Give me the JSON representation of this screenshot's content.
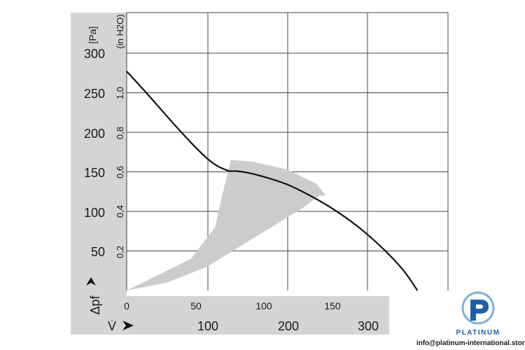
{
  "chart_data": {
    "type": "line",
    "x_axes": {
      "primary": {
        "ticks": [
          "0",
          "50",
          "100",
          "150"
        ],
        "range": [
          0,
          200
        ]
      },
      "secondary": {
        "symbol": "V̇",
        "ticks": [
          "100",
          "200",
          "300"
        ],
        "unit": ""
      }
    },
    "y_axes": {
      "primary": {
        "symbol": "Δpf",
        "unit": "[Pa]",
        "ticks": [
          "50",
          "100",
          "150",
          "200",
          "250",
          "300"
        ],
        "range": [
          0,
          300
        ]
      },
      "secondary": {
        "unit": "(in H2O)",
        "ticks": [
          "0,2",
          "0,4",
          "0,6",
          "0,8",
          "1,0"
        ]
      }
    },
    "grid": true,
    "series": [
      {
        "x": [
          0,
          10,
          20,
          30,
          40,
          50,
          56,
          60,
          64,
          68,
          75,
          85,
          100,
          115,
          130,
          145,
          160,
          172,
          181
        ],
        "y": [
          277,
          255,
          232,
          209,
          187,
          167,
          158,
          154,
          151,
          151,
          149,
          144,
          134,
          119,
          101,
          79,
          52,
          26,
          0
        ]
      }
    ],
    "operating_region": {
      "x": [
        0,
        25,
        50,
        70,
        90,
        110,
        120,
        124,
        118,
        100,
        78,
        65,
        60,
        55,
        40,
        0
      ],
      "y": [
        0,
        10,
        30,
        55,
        80,
        105,
        120,
        120,
        135,
        153,
        163,
        165,
        125,
        80,
        40,
        0
      ]
    }
  },
  "brand": {
    "logo_letter": "P",
    "logo_name": "PLATINUM",
    "contact": "info@platinum-international.store"
  },
  "colors": {
    "curve": "#111111",
    "region": "#cccccc",
    "band": "#d4d4d4",
    "grid": "#444444",
    "brand": "#1f5fa8",
    "brand_light": "#7fb1dd"
  }
}
